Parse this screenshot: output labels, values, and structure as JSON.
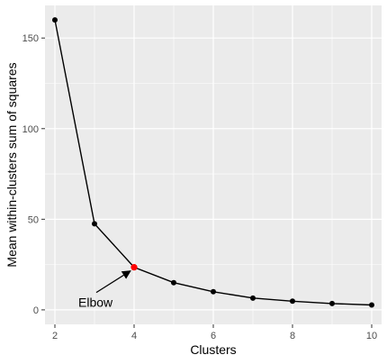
{
  "chart_data": {
    "type": "line",
    "xlabel": "Clusters",
    "ylabel": "Mean within-clusters sum of squares",
    "x": [
      2,
      3,
      4,
      5,
      6,
      7,
      8,
      9,
      10
    ],
    "y": [
      160,
      47.5,
      23.5,
      15,
      10,
      6.5,
      4.8,
      3.5,
      2.7
    ],
    "xlim": [
      1.75,
      10.25
    ],
    "ylim": [
      -8,
      168
    ],
    "xticks": [
      2,
      4,
      6,
      8,
      10
    ],
    "yticks": [
      0,
      50,
      100,
      150
    ],
    "grid": true,
    "highlight": {
      "x": 4,
      "y": 23.5,
      "color": "#ff0000"
    },
    "annotation": {
      "text": "Elbow",
      "points_to_x": 4,
      "points_to_y": 23.5
    },
    "colors": {
      "panel": "#ebebeb",
      "grid": "#ffffff",
      "line": "#000000",
      "point": "#000000"
    }
  }
}
